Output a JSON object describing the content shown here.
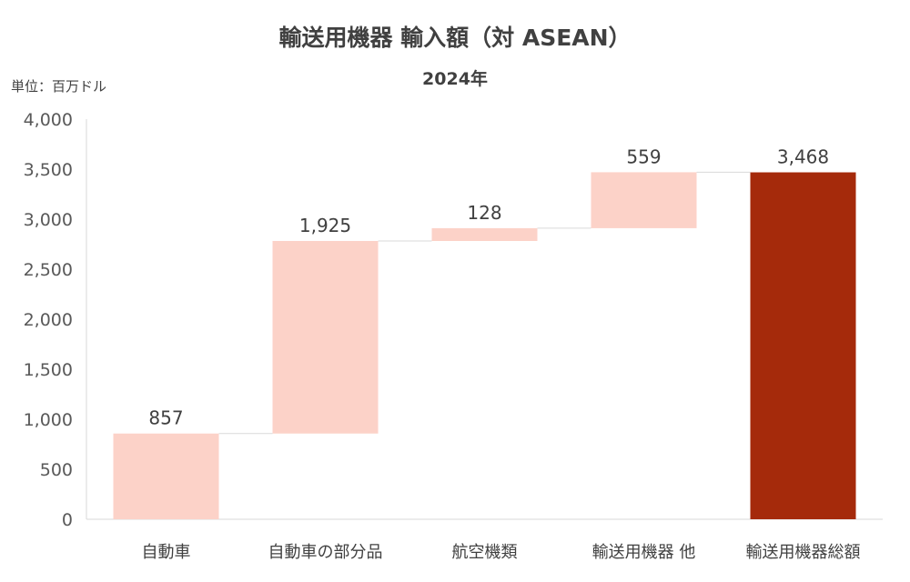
{
  "header": {
    "title": "輸送用機器 輸入額（対 ASEAN）",
    "subtitle": "2024年",
    "unit": "単位：百万ドル"
  },
  "colors": {
    "increase": "#FCD2C8",
    "total": "#A52A0B",
    "connector": "#D9D9D9",
    "axis": "#D9D9D9"
  },
  "chart_data": {
    "type": "bar",
    "subtype": "waterfall",
    "categories": [
      "自動車",
      "自動車の部分品",
      "航空機類",
      "輸送用機器 他",
      "輸送用機器総額"
    ],
    "values": [
      857,
      1925,
      128,
      559,
      3468
    ],
    "value_labels": [
      "857",
      "1,925",
      "128",
      "559",
      "3,468"
    ],
    "is_total": [
      false,
      false,
      false,
      false,
      true
    ],
    "ylim": [
      0,
      4000
    ],
    "yticks": [
      0,
      500,
      1000,
      1500,
      2000,
      2500,
      3000,
      3500,
      4000
    ],
    "ytick_labels": [
      "0",
      "500",
      "1,000",
      "1,500",
      "2,000",
      "2,500",
      "3,000",
      "3,500",
      "4,000"
    ],
    "grid": false,
    "legend": "none"
  }
}
